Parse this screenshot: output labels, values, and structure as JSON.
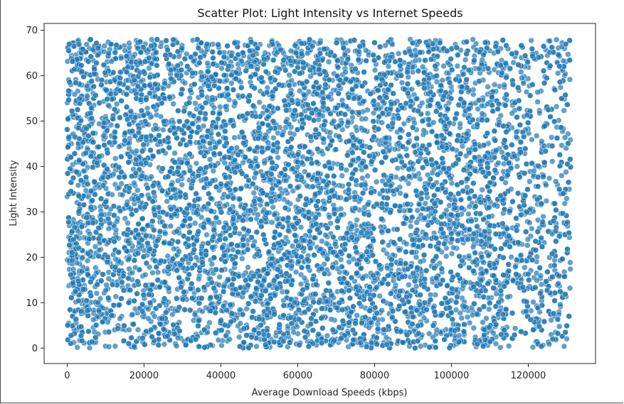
{
  "chart_data": {
    "type": "scatter",
    "title": "Scatter Plot: Light Intensity vs Internet Speeds",
    "xlabel": "Average Download Speeds (kbps)",
    "ylabel": "Light Intensity",
    "xlim": [
      -6000,
      137500
    ],
    "ylim": [
      -3.4,
      71.5
    ],
    "xticks": [
      0,
      20000,
      40000,
      60000,
      80000,
      100000,
      120000
    ],
    "xtick_labels": [
      "0",
      "20000",
      "40000",
      "60000",
      "80000",
      "100000",
      "120000"
    ],
    "yticks": [
      0,
      10,
      20,
      30,
      40,
      50,
      60,
      70
    ],
    "ytick_labels": [
      "0",
      "10",
      "20",
      "30",
      "40",
      "50",
      "60",
      "70"
    ],
    "grid": false,
    "legend": "none",
    "marker_color": "#1f77b4",
    "marker_edge_color": "#ffffff",
    "marker_alpha": 0.7,
    "x_range_of_points": [
      0,
      131000
    ],
    "y_range_of_points": [
      0,
      68
    ]
  }
}
